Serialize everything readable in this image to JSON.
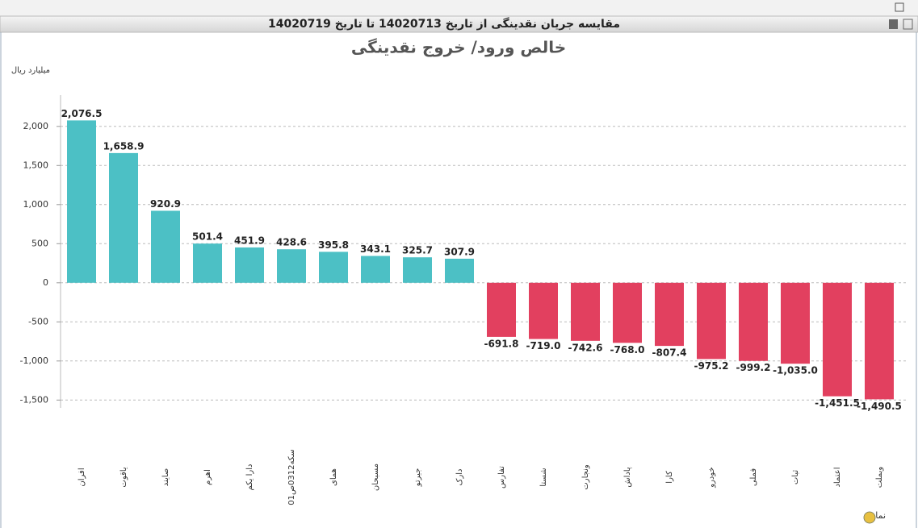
{
  "window_title": "مقایسه جریان نقدینگی از تاریخ 14020713 تا تاریخ 14020719",
  "chart_data": {
    "type": "bar",
    "title": "خالص ورود/ خروج نقدینگی",
    "y_label": "میلیارد ریال",
    "x_label": "نماد",
    "categories": [
      "افران",
      "یاقوت",
      "صایند",
      "اهرم",
      "دارا یکم",
      "سکه0312ص01",
      "همای",
      "مسبحان",
      "جیرتو",
      "دارک",
      "تفارس",
      "شستا",
      "ونجارت",
      "پاداش",
      "کارا",
      "خودرو",
      "فملی",
      "ثبات",
      "اعتماد",
      "وبملت"
    ],
    "values": [
      2076.5,
      1658.9,
      920.9,
      501.4,
      451.9,
      428.6,
      395.8,
      343.1,
      325.7,
      307.9,
      -691.8,
      -719.0,
      -742.6,
      -768.0,
      -807.4,
      -975.2,
      -999.2,
      -1035.0,
      -1451.5,
      -1490.5
    ],
    "value_labels": [
      "2,076.5",
      "1,658.9",
      "920.9",
      "501.4",
      "451.9",
      "428.6",
      "395.8",
      "343.1",
      "325.7",
      "307.9",
      "-691.8",
      "-719.0",
      "-742.6",
      "-768.0",
      "-807.4",
      "-975.2",
      "-999.2",
      "-1,035.0",
      "-1,451.5",
      "-1,490.5"
    ],
    "color_positive": "#4cc0c5",
    "color_negative": "#e2405f",
    "ylim": [
      -1600,
      2400
    ],
    "yticks": [
      {
        "value": -1500,
        "label": "-1,500"
      },
      {
        "value": -1000,
        "label": "-1,000"
      },
      -500,
      0,
      500,
      {
        "value": 1000,
        "label": "1,000"
      },
      {
        "value": 1500,
        "label": "1,500"
      },
      {
        "value": 2000,
        "label": "2,000"
      }
    ],
    "grid": true
  }
}
